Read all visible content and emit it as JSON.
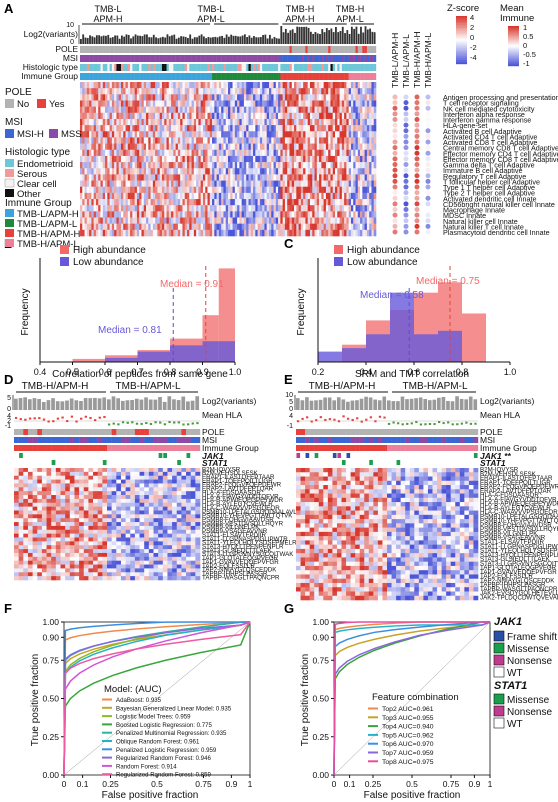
{
  "panel_letters": [
    "A",
    "B",
    "C",
    "D",
    "E",
    "F",
    "G"
  ],
  "colors": {
    "no": "#b3b3b3",
    "yes": "#e8413b",
    "msih": "#3a66d6",
    "mss": "#8c4aa6",
    "endo": "#6ec7d9",
    "serous": "#ef9b99",
    "clearcell": "#f3f3f3",
    "other": "#111111",
    "tmbl_apmh": "#3ba4dc",
    "tmbl_apml": "#1f8a3b",
    "tmbh_apmh": "#e8413b",
    "tmbh_apml": "#ec7f9a",
    "high": "#f1696a",
    "low": "#6659d9",
    "green_on": "#1aa04d"
  },
  "panelA": {
    "groups": [
      "TMB-L\nAPM-H",
      "TMB-L\nAPM-L",
      "TMB-H\nAPM-H",
      "TMB-H\nAPM-L"
    ],
    "log2_label": "Log2(variants)",
    "axis_ticks": [
      "10",
      "5",
      "0"
    ],
    "track_labels": [
      "POLE",
      "MSI",
      "Histologic type",
      "Immune Group"
    ],
    "legend": {
      "pole_title": "POLE",
      "pole_items": [
        "No",
        "Yes"
      ],
      "msi_title": "MSI",
      "msi_items": [
        "MSI-H",
        "MSS"
      ],
      "histo_title": "Histologic type",
      "histo_items": [
        "Endometrioid",
        "Serous",
        "Clear cell",
        "Other"
      ],
      "immune_title": "Immune Group",
      "immune_items": [
        "TMB-L/APM-H",
        "TMB-L/APM-L",
        "TMB-H/APM-H",
        "TMB-H/APM-L"
      ]
    },
    "dot_columns": [
      "TMB-L/APM-H",
      "TMB-L/APM-L",
      "TMB-H/APM-H",
      "TMB-H/APM-L"
    ],
    "zscore_title": "Z-score",
    "zscore_ticks": [
      "4",
      "2",
      "0",
      "-2",
      "-4"
    ],
    "mean_title": "Mean\nImmune",
    "mean_ticks": [
      "1",
      "0.5",
      "0",
      "-0.5",
      "-1"
    ],
    "signatures": [
      "Antigen processing and presentation",
      "T cell receptor signaling",
      "NK cell mediated cytotoxicity",
      "Interferon alpha response",
      "Interferon gamma response",
      "HLA-gene-set",
      "Activated B cell Adaptive",
      "Activated CD4 T cell Adaptive",
      "Activated CD8 T cell Adaptive",
      "Central memory CD8 T cell Adaptive",
      "Effector memory CD4 T cell Adaptive",
      "Effector memory CD8 T cell Adaptive",
      "Gamma delta T cell Adaptive",
      "Immature B cell Adaptive",
      "Regulatory T cell Adaptive",
      "T follicular helper cell Adaptive",
      "Type 1 T helper cell Adaptive",
      "Type 2 T helper cell Adaptive",
      "Activated dendritic cell Innate",
      "CD56bright natural killer cell Innate",
      "Macrophage Innate",
      "MDSC Innate",
      "Natural killer cell Innate",
      "Natural killer T cell Innate",
      "Plasmacytoid dendritic cell Innate"
    ]
  },
  "panelB": {
    "legend": [
      "High abundance",
      "Low abundance"
    ],
    "median_high": "Median = 0.91",
    "median_low": "Median = 0.81",
    "xlabel": "Correlation of peptides from same gene",
    "ylabel": "Frequency"
  },
  "panelC": {
    "legend": [
      "High abundance",
      "Low abundance"
    ],
    "median_high": "Median = 0.75",
    "median_low": "Median = 0.58",
    "xlabel": "SRM and TMT correlation",
    "ylabel": "Frequency"
  },
  "panelD": {
    "groups": [
      "TMB-H/APM-H",
      "TMB-H/APM-L"
    ],
    "track_labels": [
      "Log2(variants)",
      "Mean HLA",
      "POLE",
      "MSI",
      "Immune Group",
      "JAK1",
      "STAT1"
    ],
    "axis_ticks": [
      "5",
      "0",
      "4",
      "2",
      "0",
      "-1"
    ],
    "peptides": [
      "B2M-IQVYSR",
      "B2M-VEHSDLSFSK",
      "ERAP1-ILASTQFEPTAAR",
      "ERAP1-TQEFPQILTLIGR",
      "ERAP2-FLQGVFQEPDEWR",
      "ERAP2-LAVTDFEPTQAR",
      "HLA-A-FDSDAASQR",
      "HLA-A-FIAVGYVDDTQFVR",
      "HLA-B-APWIEQEGPEYWDR",
      "HLA-B-AYLEGTCVEWLR",
      "HLA-C-WAAVVVPSGQEQR",
      "PSMB10-LPFTALGSGQDAALAVLEDR",
      "PSMB10-YHFVPGTTAVLTQTVK",
      "PSMB8-FQHGVIAAVDSR",
      "PSMB8-VESTDVSDLLHQYR",
      "PSMB9-VILGNELPK",
      "PSMB9-VSAGEAVVNR",
      "STAT1-ELSAVTFPDIIR",
      "STAT1-LLGPNASPDGLIPWTR",
      "STAT1-YLEQLHQLYSDSFPMELR",
      "STAT3-HYQLLTEENPENPLR",
      "STAT3-GLSIEQLTTLAEK",
      "STAT3-LLGPGVNYSGCQITWAK",
      "TAP1-GLQTALEQGPVFGR",
      "TAP1-GVAVVEQQEPVFGR",
      "TAP2-EQLFSSLLR",
      "TAP2-NNIAYGLQSCEDDK",
      "TAPBP-IHHPSLPASGR",
      "TAPBP-WASGLTPAQNCPR"
    ]
  },
  "panelE": {
    "groups": [
      "TMB-H/APM-H",
      "TMB-H/APM-L"
    ],
    "track_labels": [
      "Log2(variants)",
      "Mean HLA",
      "POLE",
      "MSI",
      "Immune Group",
      "JAK1 **",
      "STAT1"
    ],
    "axis_ticks": [
      "10",
      "5",
      "0",
      "4",
      "2",
      "0",
      "-1"
    ],
    "peptides": [
      "B2M-IQVYSR",
      "B2M-VEHSDLSFSK",
      "ERAP1-ILASTQFEPTAAR",
      "ERAP1-TQEFPQILTLIGR",
      "ERAP2-FLQGVFQEPDEWR",
      "ERAP2-LAVTDFEPTQAR",
      "HLA-A-FDSDAASQR",
      "HLA-A-FIAVGYVDDTQFVR",
      "HLA-B-APWIEQEGPEYWDR",
      "HLA-B-AYLEGTCVEWLR",
      "HLA-C-WAAVVVPSGQEQR",
      "PSMB10-LPFTALGSGQDAALAVLEDR",
      "PSMB10-YHFVPGTTAVLTQTVK",
      "PSMB8-FQHGVIAAVDSR",
      "PSMB8-VESTDVSDLLHQYR",
      "PSMB9-VILGNELPK",
      "PSMB9-VSAGEAVVNR",
      "STAT1-ELSAVTFPDIIR",
      "STAT1-LLGPNASPDGLIPWTR",
      "STAT1-YLEQLHQLYSDSFPMELR",
      "STAT3-HYQLLTEENPENPLR",
      "STAT3-GLSIEQLTTLAEK",
      "STAT3-LLGPGVNYSGCQITWAK",
      "TAP1-GLQTALEQGPVFGR",
      "TAP1-GVAVVEQQEPVFGR",
      "TAP2-EQLFSSLLR",
      "TAP2-NNIAYGLQSCEDDK",
      "TAPBP-IHHPSLPASGR",
      "TAPBP-WASGLTPAQNCPR",
      "JAK2-EVGDYGQLHETEVLLK",
      "JAK2-TPLDQCDWTQVEVAK"
    ]
  },
  "panelF": {
    "legend_title": "Model: (AUC)",
    "ylabel": "True positive fraction",
    "xlabel": "False positive fraction",
    "models": [
      {
        "label": "AdaBoost: 0.935",
        "color": "#f08a4b"
      },
      {
        "label": "Bayesian Generalized Linear Model: 0.935",
        "color": "#c9a227"
      },
      {
        "label": "Logistic Model Trees: 0.959",
        "color": "#8fb82c"
      },
      {
        "label": "Boosted Logistic Regression: 0.775",
        "color": "#3aa63a"
      },
      {
        "label": "Penalized Multinomial Regression: 0.935",
        "color": "#2cb59a"
      },
      {
        "label": "Oblique Random Forest: 0.961",
        "color": "#23b3c9"
      },
      {
        "label": "Penalized Logistic Regression: 0.959",
        "color": "#3c8fe0"
      },
      {
        "label": "Regularized Random Forest: 0.946",
        "color": "#8a66e0"
      },
      {
        "label": "Random Forest: 0.914",
        "color": "#d354d8"
      },
      {
        "label": "Regularized Random Forest: 0.859",
        "color": "#f05aa0"
      }
    ]
  },
  "panelG": {
    "legend_title": "Feature combination",
    "ylabel": "True positive fraction",
    "xlabel": "False positive fraction",
    "models": [
      {
        "label": "Top2 AUC=0.961",
        "color": "#f08a4b"
      },
      {
        "label": "Top3 AUC=0.955",
        "color": "#c9a227"
      },
      {
        "label": "Top4 AUC=0.940",
        "color": "#3aa63a"
      },
      {
        "label": "Top5 AUC=0.962",
        "color": "#23b3c9"
      },
      {
        "label": "Top6 AUC=0.970",
        "color": "#3c8fe0"
      },
      {
        "label": "Top7 AUC=0.959",
        "color": "#8a66e0"
      },
      {
        "label": "Top8 AUC=0.975",
        "color": "#e94da0"
      }
    ],
    "jak1_title": "JAK1",
    "jak1_items": [
      "Frame shift",
      "Missense",
      "Nonsense",
      "WT"
    ],
    "stat1_title": "STAT1",
    "stat1_items": [
      "Missense",
      "Nonsense",
      "WT"
    ],
    "mut_colors": [
      "#2a4fa8",
      "#1aa04d",
      "#c03a8f",
      "#ffffff"
    ]
  },
  "roc_ticks": [
    "0",
    "0.1",
    "0.25",
    "0.5",
    "0.75",
    "0.9",
    "1"
  ],
  "roc_yticks": [
    "0.00",
    "0.25",
    "0.50",
    "0.75",
    "0.90",
    "1.00"
  ],
  "hist_xB": [
    "0.4",
    "0.5",
    "0.6",
    "0.7",
    "0.8",
    "0.9",
    "1.0"
  ],
  "hist_xC": [
    "0.2",
    "0.4",
    "0.6",
    "0.8",
    "1.0"
  ]
}
